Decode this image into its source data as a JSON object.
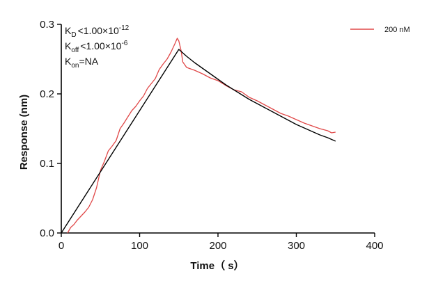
{
  "chart_data": {
    "type": "line",
    "xlabel": "Time（ s）",
    "ylabel": "Response (nm)",
    "xlim": [
      0,
      400
    ],
    "ylim": [
      0,
      0.3
    ],
    "x_ticks": [
      0,
      100,
      200,
      300,
      400
    ],
    "y_ticks": [
      0.0,
      0.1,
      0.2,
      0.3
    ],
    "x_tick_labels": [
      "0",
      "100",
      "200",
      "300",
      "400"
    ],
    "y_tick_labels": [
      "0.0",
      "0.1",
      "0.2",
      "0.3"
    ],
    "grid": false,
    "legend_position": "top-right",
    "series": [
      {
        "name": "200 nM",
        "color": "#e04848",
        "style": "measured",
        "x": [
          8,
          12,
          16,
          20,
          25,
          30,
          35,
          40,
          45,
          50,
          55,
          60,
          65,
          70,
          75,
          80,
          85,
          90,
          95,
          100,
          105,
          110,
          115,
          120,
          125,
          130,
          135,
          140,
          145,
          148,
          150,
          153,
          155,
          160,
          165,
          170,
          180,
          190,
          200,
          210,
          220,
          230,
          240,
          250,
          260,
          270,
          280,
          290,
          300,
          310,
          320,
          330,
          340,
          345,
          350
        ],
        "y": [
          0.0,
          0.008,
          0.012,
          0.018,
          0.024,
          0.03,
          0.037,
          0.048,
          0.065,
          0.09,
          0.103,
          0.118,
          0.125,
          0.133,
          0.15,
          0.158,
          0.167,
          0.176,
          0.182,
          0.19,
          0.197,
          0.208,
          0.215,
          0.222,
          0.235,
          0.243,
          0.25,
          0.26,
          0.272,
          0.28,
          0.276,
          0.262,
          0.246,
          0.238,
          0.236,
          0.234,
          0.229,
          0.223,
          0.219,
          0.212,
          0.206,
          0.203,
          0.195,
          0.19,
          0.184,
          0.178,
          0.172,
          0.168,
          0.163,
          0.158,
          0.154,
          0.15,
          0.147,
          0.144,
          0.145
        ]
      },
      {
        "name": "",
        "color": "#000000",
        "style": "fit",
        "x": [
          0,
          150,
          160,
          170,
          180,
          190,
          200,
          210,
          220,
          230,
          240,
          250,
          260,
          270,
          280,
          290,
          300,
          310,
          320,
          330,
          340,
          350
        ],
        "y": [
          0.0,
          0.264,
          0.254,
          0.245,
          0.237,
          0.229,
          0.221,
          0.213,
          0.206,
          0.199,
          0.192,
          0.186,
          0.18,
          0.174,
          0.168,
          0.162,
          0.156,
          0.151,
          0.146,
          0.141,
          0.137,
          0.132
        ]
      }
    ]
  },
  "kinetics": {
    "kd": {
      "base": "K",
      "sub": "D",
      "rel": "<",
      "value": "1.00×10",
      "exp": "-12"
    },
    "koff": {
      "base": "K",
      "sub": "off",
      "rel": "<",
      "value": "1.00×10",
      "exp": "-6"
    },
    "kon": {
      "base": "K",
      "sub": "on",
      "rel": "=",
      "value": "NA"
    }
  }
}
